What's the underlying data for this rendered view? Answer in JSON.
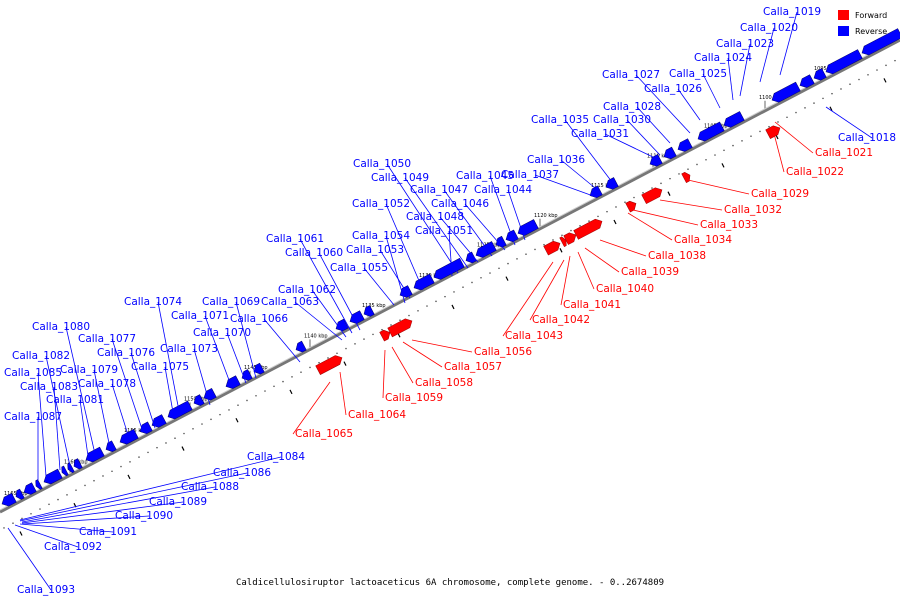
{
  "caption": "Caldicellulosiruptor lactoaceticus 6A chromosome, complete genome. - 0..2674809",
  "legend": [
    {
      "label": "Forward",
      "color": "#ff0000"
    },
    {
      "label": "Reverse",
      "color": "#0000ff"
    }
  ],
  "colors": {
    "forward": "#ff0000",
    "reverse": "#0000ff",
    "backbone": "#777777",
    "ticks": "#000000"
  },
  "tick_labels": [
    "1095 kbp",
    "1100 kbp",
    "1105 kbp",
    "1110 kbp",
    "1115 kbp",
    "1120 kbp",
    "1125 kbp",
    "1130 kbp",
    "1135 kbp",
    "1140 kbp",
    "1145 kbp",
    "1150 kbp",
    "1155 kbp",
    "1160 kbp",
    "1165 kbp"
  ],
  "genes": [
    {
      "name": "Calla_1018",
      "strand": "reverse"
    },
    {
      "name": "Calla_1019",
      "strand": "reverse"
    },
    {
      "name": "Calla_1020",
      "strand": "reverse"
    },
    {
      "name": "Calla_1021",
      "strand": "forward"
    },
    {
      "name": "Calla_1022",
      "strand": "forward"
    },
    {
      "name": "Calla_1023",
      "strand": "reverse"
    },
    {
      "name": "Calla_1024",
      "strand": "reverse"
    },
    {
      "name": "Calla_1025",
      "strand": "reverse"
    },
    {
      "name": "Calla_1026",
      "strand": "reverse"
    },
    {
      "name": "Calla_1027",
      "strand": "reverse"
    },
    {
      "name": "Calla_1028",
      "strand": "reverse"
    },
    {
      "name": "Calla_1029",
      "strand": "forward"
    },
    {
      "name": "Calla_1030",
      "strand": "reverse"
    },
    {
      "name": "Calla_1031",
      "strand": "reverse"
    },
    {
      "name": "Calla_1032",
      "strand": "forward"
    },
    {
      "name": "Calla_1033",
      "strand": "forward"
    },
    {
      "name": "Calla_1034",
      "strand": "forward"
    },
    {
      "name": "Calla_1035",
      "strand": "reverse"
    },
    {
      "name": "Calla_1036",
      "strand": "reverse"
    },
    {
      "name": "Calla_1037",
      "strand": "reverse"
    },
    {
      "name": "Calla_1038",
      "strand": "forward"
    },
    {
      "name": "Calla_1039",
      "strand": "forward"
    },
    {
      "name": "Calla_1040",
      "strand": "forward"
    },
    {
      "name": "Calla_1041",
      "strand": "forward"
    },
    {
      "name": "Calla_1042",
      "strand": "forward"
    },
    {
      "name": "Calla_1043",
      "strand": "forward"
    },
    {
      "name": "Calla_1044",
      "strand": "reverse"
    },
    {
      "name": "Calla_1045",
      "strand": "reverse"
    },
    {
      "name": "Calla_1046",
      "strand": "reverse"
    },
    {
      "name": "Calla_1047",
      "strand": "reverse"
    },
    {
      "name": "Calla_1048",
      "strand": "reverse"
    },
    {
      "name": "Calla_1049",
      "strand": "reverse"
    },
    {
      "name": "Calla_1050",
      "strand": "reverse"
    },
    {
      "name": "Calla_1051",
      "strand": "reverse"
    },
    {
      "name": "Calla_1052",
      "strand": "reverse"
    },
    {
      "name": "Calla_1053",
      "strand": "reverse"
    },
    {
      "name": "Calla_1054",
      "strand": "reverse"
    },
    {
      "name": "Calla_1055",
      "strand": "reverse"
    },
    {
      "name": "Calla_1056",
      "strand": "forward"
    },
    {
      "name": "Calla_1057",
      "strand": "forward"
    },
    {
      "name": "Calla_1058",
      "strand": "forward"
    },
    {
      "name": "Calla_1059",
      "strand": "forward"
    },
    {
      "name": "Calla_1060",
      "strand": "reverse"
    },
    {
      "name": "Calla_1061",
      "strand": "reverse"
    },
    {
      "name": "Calla_1062",
      "strand": "reverse"
    },
    {
      "name": "Calla_1063",
      "strand": "reverse"
    },
    {
      "name": "Calla_1064",
      "strand": "forward"
    },
    {
      "name": "Calla_1065",
      "strand": "forward"
    },
    {
      "name": "Calla_1066",
      "strand": "reverse"
    },
    {
      "name": "Calla_1069",
      "strand": "reverse"
    },
    {
      "name": "Calla_1070",
      "strand": "reverse"
    },
    {
      "name": "Calla_1071",
      "strand": "reverse"
    },
    {
      "name": "Calla_1073",
      "strand": "reverse"
    },
    {
      "name": "Calla_1074",
      "strand": "reverse"
    },
    {
      "name": "Calla_1075",
      "strand": "reverse"
    },
    {
      "name": "Calla_1076",
      "strand": "reverse"
    },
    {
      "name": "Calla_1077",
      "strand": "reverse"
    },
    {
      "name": "Calla_1078",
      "strand": "reverse"
    },
    {
      "name": "Calla_1079",
      "strand": "reverse"
    },
    {
      "name": "Calla_1080",
      "strand": "reverse"
    },
    {
      "name": "Calla_1081",
      "strand": "reverse"
    },
    {
      "name": "Calla_1082",
      "strand": "reverse"
    },
    {
      "name": "Calla_1083",
      "strand": "reverse"
    },
    {
      "name": "Calla_1084",
      "strand": "reverse"
    },
    {
      "name": "Calla_1085",
      "strand": "reverse"
    },
    {
      "name": "Calla_1086",
      "strand": "reverse"
    },
    {
      "name": "Calla_1087",
      "strand": "reverse"
    },
    {
      "name": "Calla_1088",
      "strand": "reverse"
    },
    {
      "name": "Calla_1089",
      "strand": "reverse"
    },
    {
      "name": "Calla_1090",
      "strand": "reverse"
    },
    {
      "name": "Calla_1091",
      "strand": "reverse"
    },
    {
      "name": "Calla_1092",
      "strand": "reverse"
    },
    {
      "name": "Calla_1093",
      "strand": "reverse"
    }
  ]
}
